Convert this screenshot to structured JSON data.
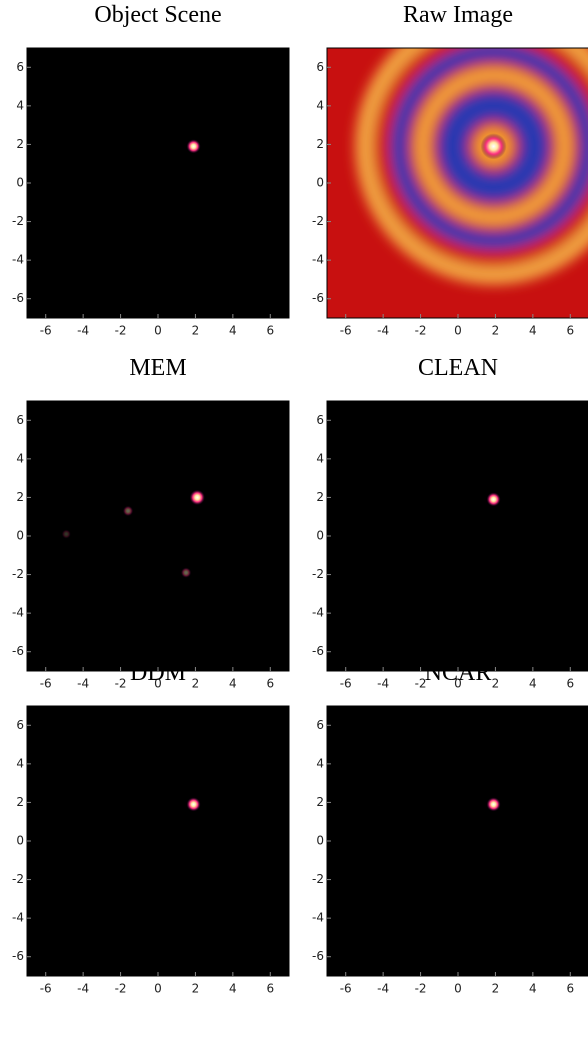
{
  "chart_data": [
    {
      "type": "image",
      "title": "Object Scene",
      "xlim": [
        -7,
        7
      ],
      "ylim": [
        -7,
        7
      ],
      "xticks": [
        -6,
        -4,
        -2,
        0,
        2,
        4,
        6
      ],
      "yticks": [
        -6,
        -4,
        -2,
        0,
        2,
        4,
        6
      ],
      "background": "#000000",
      "sources": [
        {
          "x": 1.9,
          "y": 1.9,
          "intensity": 1
        }
      ]
    },
    {
      "type": "image",
      "title": "Raw Image",
      "xlim": [
        -7,
        7
      ],
      "ylim": [
        -7,
        7
      ],
      "xticks": [
        -6,
        -4,
        -2,
        0,
        2,
        4,
        6
      ],
      "yticks": [
        -6,
        -4,
        -2,
        0,
        2,
        4,
        6
      ],
      "background": "#c81010",
      "rings": [
        {
          "r": 7.4,
          "color": "#f0a040"
        },
        {
          "r": 6.4,
          "color": "#d01818"
        },
        {
          "r": 5.5,
          "color": "#2a38b0"
        },
        {
          "r": 4.6,
          "color": "#d01818"
        },
        {
          "r": 4.2,
          "color": "#f2a040"
        },
        {
          "r": 3.4,
          "color": "#d01818"
        },
        {
          "r": 3.0,
          "color": "#2a38b0"
        },
        {
          "r": 1.4,
          "color": "#d01818"
        },
        {
          "r": 1.0,
          "color": "#f6a030"
        }
      ],
      "ring_center": {
        "x": 1.9,
        "y": 1.9
      },
      "sources": [
        {
          "x": 1.9,
          "y": 1.9,
          "intensity": 3
        }
      ]
    },
    {
      "type": "image",
      "title": "MEM",
      "xlim": [
        -7,
        7
      ],
      "ylim": [
        -7,
        7
      ],
      "xticks": [
        -6,
        -4,
        -2,
        0,
        2,
        4,
        6
      ],
      "yticks": [
        -6,
        -4,
        -2,
        0,
        2,
        4,
        6
      ],
      "background": "#000000",
      "sources": [
        {
          "x": 2.1,
          "y": 2.0,
          "intensity": 1.2
        },
        {
          "x": -1.6,
          "y": 1.3,
          "intensity": 0.4
        },
        {
          "x": 1.5,
          "y": -1.9,
          "intensity": 0.4
        },
        {
          "x": -4.9,
          "y": 0.1,
          "intensity": 0.2
        }
      ]
    },
    {
      "type": "image",
      "title": "CLEAN",
      "xlim": [
        -7,
        7
      ],
      "ylim": [
        -7,
        7
      ],
      "xticks": [
        -6,
        -4,
        -2,
        0,
        2,
        4,
        6
      ],
      "yticks": [
        -6,
        -4,
        -2,
        0,
        2,
        4,
        6
      ],
      "background": "#000000",
      "sources": [
        {
          "x": 1.9,
          "y": 1.9,
          "intensity": 1
        }
      ]
    },
    {
      "type": "image",
      "title": "DDM",
      "xlim": [
        -7,
        7
      ],
      "ylim": [
        -7,
        7
      ],
      "xticks": [
        -6,
        -4,
        -2,
        0,
        2,
        4,
        6
      ],
      "yticks": [
        -6,
        -4,
        -2,
        0,
        2,
        4,
        6
      ],
      "background": "#000000",
      "sources": [
        {
          "x": 1.9,
          "y": 1.9,
          "intensity": 1
        }
      ]
    },
    {
      "type": "image",
      "title": "NCAR",
      "xlim": [
        -7,
        7
      ],
      "ylim": [
        -7,
        7
      ],
      "xticks": [
        -6,
        -4,
        -2,
        0,
        2,
        4,
        6
      ],
      "yticks": [
        -6,
        -4,
        -2,
        0,
        2,
        4,
        6
      ],
      "background": "#000000",
      "sources": [
        {
          "x": 1.9,
          "y": 1.9,
          "intensity": 1
        }
      ]
    }
  ]
}
